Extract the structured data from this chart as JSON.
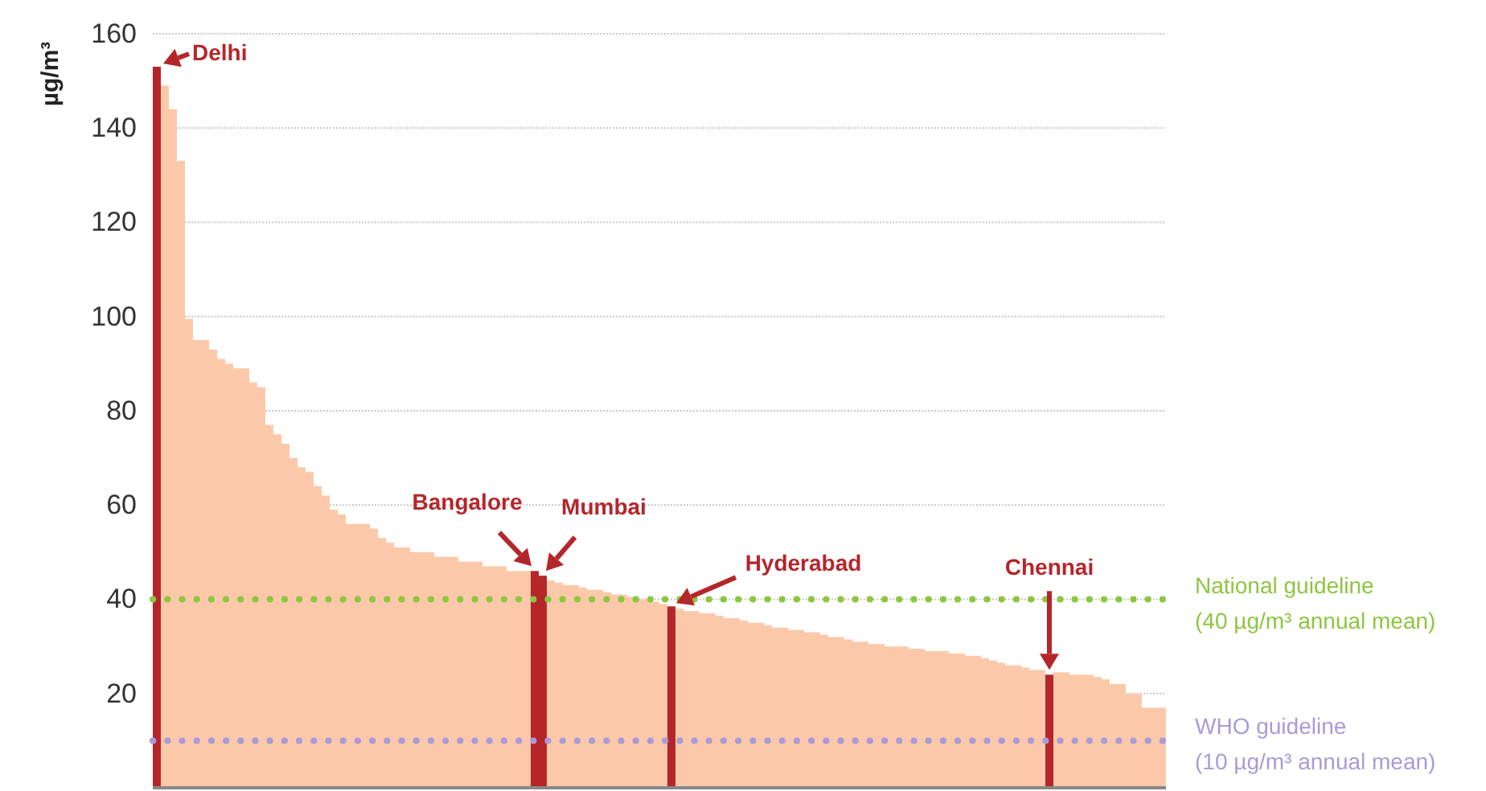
{
  "chart_data": {
    "type": "bar",
    "ylabel": "µg/m³",
    "categories": [
      null,
      null,
      null,
      null,
      null,
      null,
      null,
      null,
      null,
      null,
      null,
      null,
      null,
      null,
      null,
      null,
      null,
      null,
      null,
      null,
      null,
      null,
      null,
      null,
      null,
      null,
      null,
      null,
      null,
      null,
      null,
      null,
      null,
      null,
      null,
      null,
      null,
      null,
      null,
      null,
      null,
      null,
      null,
      null,
      null,
      null,
      null,
      null,
      null,
      null,
      null,
      null,
      null,
      null,
      null,
      null,
      null,
      null,
      null,
      null,
      null,
      null,
      null,
      null,
      null,
      null,
      null,
      null,
      null,
      null,
      null,
      null,
      null,
      null,
      null,
      null,
      null,
      null,
      null,
      null,
      null,
      null,
      null,
      null,
      null,
      null,
      null,
      null,
      null,
      null,
      null,
      null,
      null,
      null,
      null,
      null,
      null,
      null,
      null,
      null,
      null,
      null,
      null,
      null,
      null,
      null,
      null,
      null,
      null,
      null,
      null,
      null,
      null,
      null,
      null,
      null,
      null,
      null,
      null,
      null,
      null,
      null,
      null,
      null,
      null,
      null
    ],
    "values": [
      153,
      149,
      144,
      133,
      99.5,
      95,
      95,
      93,
      91,
      90,
      89,
      89,
      86,
      85,
      77,
      75,
      73,
      70,
      68,
      67,
      64,
      62,
      59,
      58,
      56,
      56,
      56,
      55,
      53,
      52,
      51,
      51,
      50,
      50,
      50,
      49,
      49,
      49,
      48,
      48,
      48,
      47,
      47,
      47,
      46,
      46,
      46,
      46,
      45,
      44,
      43.5,
      43,
      43,
      42.5,
      42,
      42,
      41.5,
      41,
      41,
      40.5,
      40,
      40,
      39.5,
      39,
      38.5,
      38,
      37.5,
      37.5,
      37,
      37,
      36.5,
      36,
      36,
      35.5,
      35,
      35,
      34.5,
      34,
      34,
      33.5,
      33.5,
      33,
      33,
      32.5,
      32,
      32,
      31.5,
      31,
      31,
      30.5,
      30.5,
      30,
      30,
      30,
      29.5,
      29.5,
      29,
      29,
      29,
      28.5,
      28.5,
      28,
      28,
      27.5,
      27,
      26.5,
      26,
      26,
      25.5,
      25,
      25,
      24,
      24.5,
      24.5,
      24,
      24,
      24,
      23.5,
      23,
      22,
      22,
      20,
      20,
      17,
      17,
      17
    ],
    "color": "#fbc9aa",
    "colors": [
      "#b5262b",
      "#fbc9aa",
      "#fbc9aa",
      "#fbc9aa",
      "#fbc9aa",
      "#fbc9aa",
      "#fbc9aa",
      "#fbc9aa",
      "#fbc9aa",
      "#fbc9aa",
      "#fbc9aa",
      "#fbc9aa",
      "#fbc9aa",
      "#fbc9aa",
      "#fbc9aa",
      "#fbc9aa",
      "#fbc9aa",
      "#fbc9aa",
      "#fbc9aa",
      "#fbc9aa",
      "#fbc9aa",
      "#fbc9aa",
      "#fbc9aa",
      "#fbc9aa",
      "#fbc9aa",
      "#fbc9aa",
      "#fbc9aa",
      "#fbc9aa",
      "#fbc9aa",
      "#fbc9aa",
      "#fbc9aa",
      "#fbc9aa",
      "#fbc9aa",
      "#fbc9aa",
      "#fbc9aa",
      "#fbc9aa",
      "#fbc9aa",
      "#fbc9aa",
      "#fbc9aa",
      "#fbc9aa",
      "#fbc9aa",
      "#fbc9aa",
      "#fbc9aa",
      "#fbc9aa",
      "#fbc9aa",
      "#fbc9aa",
      "#fbc9aa",
      "#b5262b",
      "#b5262b",
      "#fbc9aa",
      "#fbc9aa",
      "#fbc9aa",
      "#fbc9aa",
      "#fbc9aa",
      "#fbc9aa",
      "#fbc9aa",
      "#fbc9aa",
      "#fbc9aa",
      "#fbc9aa",
      "#fbc9aa",
      "#fbc9aa",
      "#fbc9aa",
      "#fbc9aa",
      "#fbc9aa",
      "#b5262b",
      "#fbc9aa",
      "#fbc9aa",
      "#fbc9aa",
      "#fbc9aa",
      "#fbc9aa",
      "#fbc9aa",
      "#fbc9aa",
      "#fbc9aa",
      "#fbc9aa",
      "#fbc9aa",
      "#fbc9aa",
      "#fbc9aa",
      "#fbc9aa",
      "#fbc9aa",
      "#fbc9aa",
      "#fbc9aa",
      "#fbc9aa",
      "#fbc9aa",
      "#fbc9aa",
      "#fbc9aa",
      "#fbc9aa",
      "#fbc9aa",
      "#fbc9aa",
      "#fbc9aa",
      "#fbc9aa",
      "#fbc9aa",
      "#fbc9aa",
      "#fbc9aa",
      "#fbc9aa",
      "#fbc9aa",
      "#fbc9aa",
      "#fbc9aa",
      "#fbc9aa",
      "#fbc9aa",
      "#fbc9aa",
      "#fbc9aa",
      "#fbc9aa",
      "#fbc9aa",
      "#fbc9aa",
      "#fbc9aa",
      "#fbc9aa",
      "#fbc9aa",
      "#fbc9aa",
      "#fbc9aa",
      "#fbc9aa",
      "#fbc9aa",
      "#b5262b",
      "#fbc9aa",
      "#fbc9aa",
      "#fbc9aa",
      "#fbc9aa",
      "#fbc9aa",
      "#fbc9aa",
      "#fbc9aa",
      "#fbc9aa",
      "#fbc9aa",
      "#fbc9aa",
      "#fbc9aa",
      "#fbc9aa",
      "#fbc9aa",
      "#fbc9aa"
    ],
    "ylim": [
      0,
      160
    ],
    "yticks": [
      20,
      40,
      60,
      80,
      100,
      120,
      140,
      160
    ],
    "grid": "y",
    "ref_lines": [
      {
        "axis": "y",
        "value": 40,
        "label": "National guideline (40 µg/m³ annual mean)",
        "color": "#8dc63f",
        "line_style": "dotted"
      },
      {
        "axis": "y",
        "value": 10,
        "label": "WHO guideline (10 µg/m³ annual mean)",
        "color": "#a99bd6",
        "line_style": "dotted"
      }
    ],
    "annotations": [
      "Delhi",
      "Bangalore",
      "Mumbai",
      "Hyderabad",
      "Chennai"
    ]
  }
}
